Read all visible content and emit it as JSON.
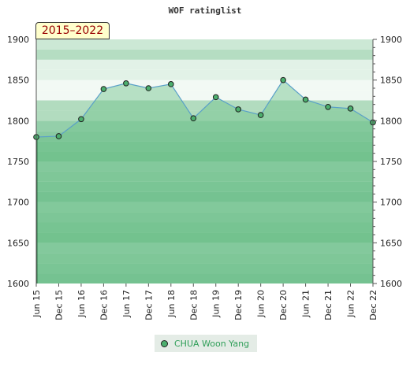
{
  "badge": "2015–2022",
  "chart_data": {
    "type": "area",
    "title": "WOF ratinglist",
    "categories": [
      "Jun 15",
      "Dec 15",
      "Jun 16",
      "Dec 16",
      "Jun 17",
      "Dec 17",
      "Jun 18",
      "Dec 18",
      "Jun 19",
      "Dec 19",
      "Jun 20",
      "Dec 20",
      "Jun 21",
      "Dec 21",
      "Jun 22",
      "Dec 22"
    ],
    "series": [
      {
        "name": "CHUA Woon Yang",
        "values": [
          1780,
          1781,
          1802,
          1839,
          1846,
          1840,
          1845,
          1803,
          1829,
          1814,
          1807,
          1850,
          1826,
          1817,
          1815,
          1798
        ]
      }
    ],
    "ylim": [
      1600,
      1900
    ],
    "yticks": [
      1600,
      1650,
      1700,
      1750,
      1800,
      1850,
      1900
    ],
    "xlabel": "",
    "ylabel": "",
    "legend_position": "bottom-center",
    "colors": {
      "line": "#5aa0c8",
      "marker": "#4caf6e",
      "fill": "#6cc08a",
      "band_dark": "#78c393",
      "band_light": "#98d3ab"
    }
  }
}
